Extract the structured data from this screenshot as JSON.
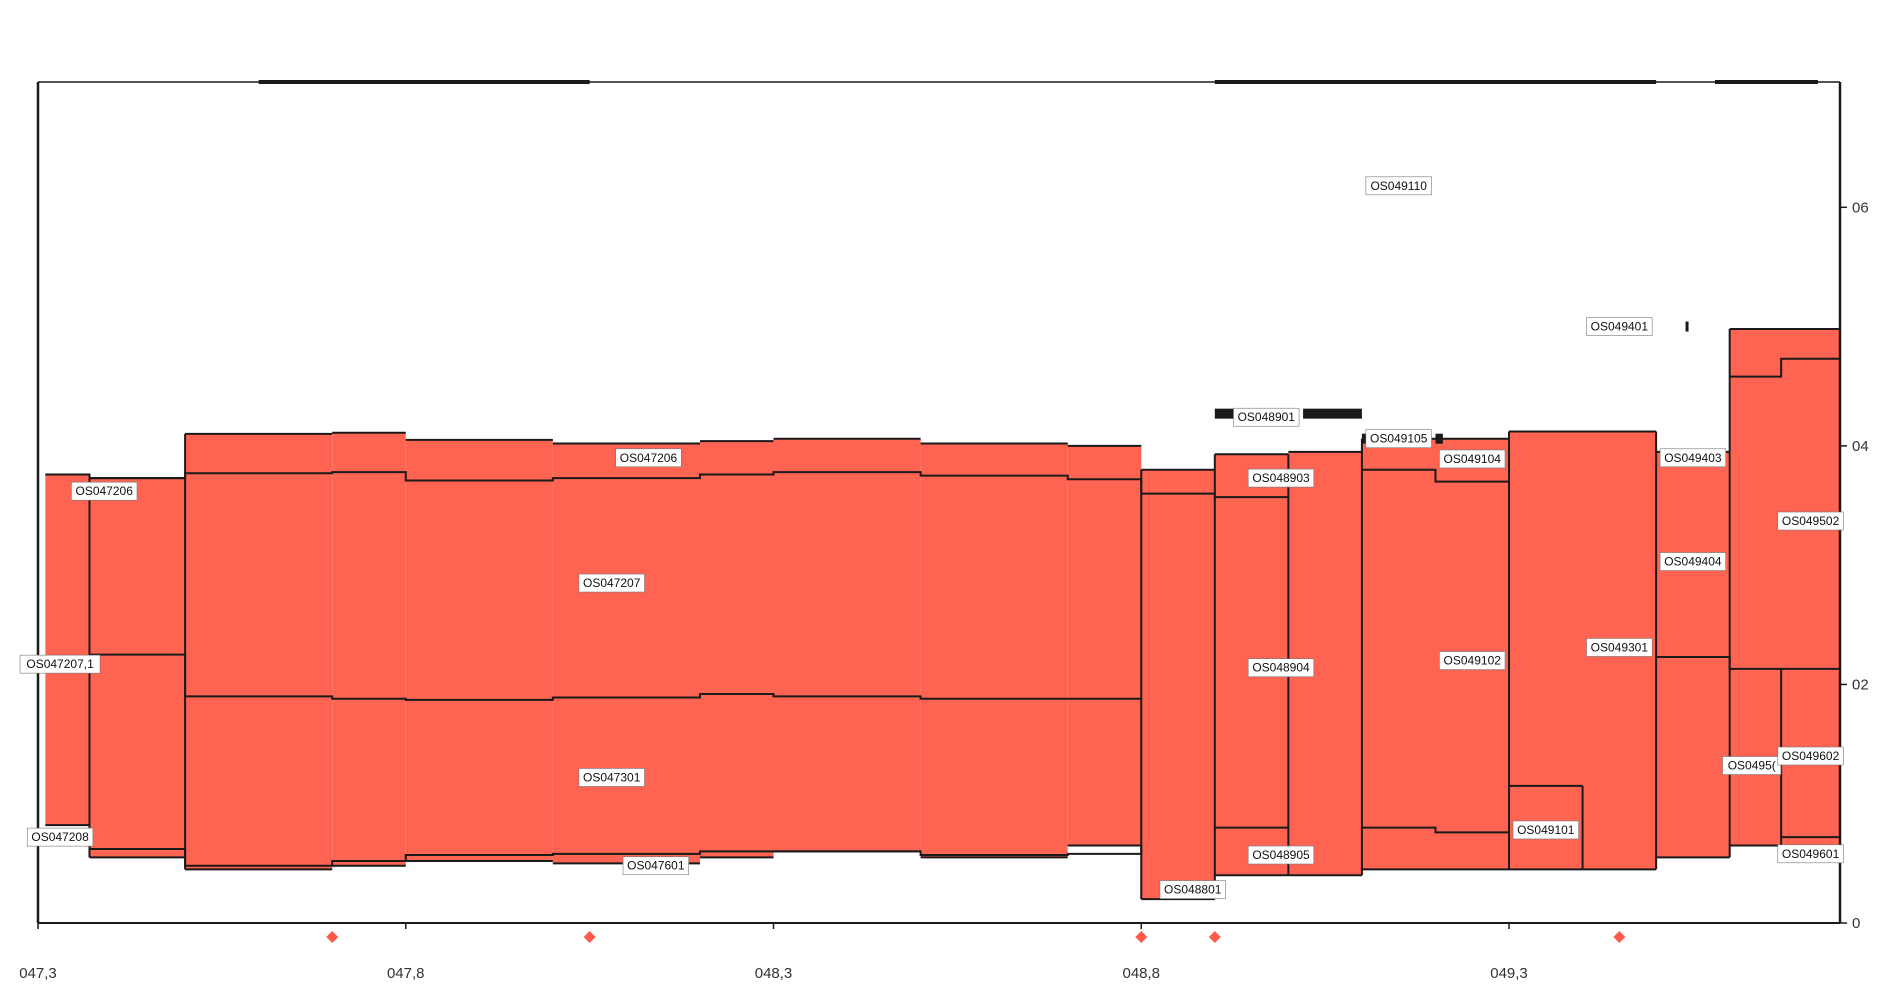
{
  "chart_data": {
    "type": "area",
    "title": "",
    "xlabel": "",
    "ylabel": "",
    "xlim": [
      47.3,
      49.75
    ],
    "ylim": [
      0,
      7
    ],
    "grid": false,
    "y_axis_side": "right",
    "colors": {
      "fill": "#ff6352",
      "line": "#1a1a1a",
      "marker": "#ff5a4a",
      "label_bg": "#ffffff"
    },
    "x_ticks": [
      {
        "value": 47.3,
        "label": "047,3"
      },
      {
        "value": 47.8,
        "label": "047,8"
      },
      {
        "value": 48.3,
        "label": "048,3"
      },
      {
        "value": 48.8,
        "label": "048,8"
      },
      {
        "value": 49.3,
        "label": "049,3"
      }
    ],
    "y_ticks": [
      {
        "value": 0,
        "label": "0"
      },
      {
        "value": 2,
        "label": "02"
      },
      {
        "value": 4,
        "label": "04"
      },
      {
        "value": 6,
        "label": "06"
      }
    ],
    "frame_top": 7.05,
    "frame_top_thick": [
      [
        47.6,
        48.05
      ],
      [
        48.9,
        49.5
      ],
      [
        49.58,
        49.72
      ]
    ],
    "segments": [
      {
        "x0": 47.31,
        "x1": 47.37,
        "y0": 0.82,
        "y1": 3.76
      },
      {
        "x0": 47.37,
        "x1": 47.5,
        "y0": 0.55,
        "y1": 3.73
      },
      {
        "x0": 47.5,
        "x1": 47.7,
        "y0": 0.45,
        "y1": 4.1
      },
      {
        "x0": 47.7,
        "x1": 47.8,
        "y0": 0.48,
        "y1": 4.11
      },
      {
        "x0": 47.8,
        "x1": 48.0,
        "y0": 0.52,
        "y1": 4.05
      },
      {
        "x0": 48.0,
        "x1": 48.2,
        "y0": 0.5,
        "y1": 4.02
      },
      {
        "x0": 48.2,
        "x1": 48.3,
        "y0": 0.55,
        "y1": 4.04
      },
      {
        "x0": 48.3,
        "x1": 48.5,
        "y0": 0.6,
        "y1": 4.06
      },
      {
        "x0": 48.5,
        "x1": 48.7,
        "y0": 0.55,
        "y1": 4.02
      },
      {
        "x0": 48.7,
        "x1": 48.8,
        "y0": 0.65,
        "y1": 4.0
      },
      {
        "x0": 48.8,
        "x1": 48.9,
        "y0": 0.2,
        "y1": 3.8
      },
      {
        "x0": 48.9,
        "x1": 49.0,
        "y0": 0.4,
        "y1": 3.93
      },
      {
        "x0": 49.0,
        "x1": 49.1,
        "y0": 0.4,
        "y1": 3.95
      },
      {
        "x0": 49.1,
        "x1": 49.3,
        "y0": 0.45,
        "y1": 4.06
      },
      {
        "x0": 49.3,
        "x1": 49.5,
        "y0": 0.45,
        "y1": 4.12
      },
      {
        "x0": 49.5,
        "x1": 49.6,
        "y0": 0.55,
        "y1": 3.95
      },
      {
        "x0": 49.6,
        "x1": 49.75,
        "y0": 0.65,
        "y1": 4.98
      }
    ],
    "steps": [
      {
        "name": "OS047206 (lower boundary)",
        "points": [
          [
            47.31,
            3.76
          ],
          [
            47.37,
            3.73
          ],
          [
            47.5,
            3.77
          ],
          [
            47.7,
            3.78
          ],
          [
            47.8,
            3.71
          ],
          [
            48.0,
            3.73
          ],
          [
            48.2,
            3.76
          ],
          [
            48.3,
            3.78
          ],
          [
            48.5,
            3.75
          ],
          [
            48.7,
            3.72
          ],
          [
            48.8,
            3.6
          ],
          [
            48.9,
            3.55
          ]
        ]
      },
      {
        "name": "OS047301 (upper boundary)",
        "points": [
          [
            47.37,
            2.25
          ],
          [
            47.5,
            1.9
          ],
          [
            47.7,
            1.88
          ],
          [
            47.8,
            1.87
          ],
          [
            48.0,
            1.89
          ],
          [
            48.2,
            1.92
          ],
          [
            48.3,
            1.9
          ],
          [
            48.5,
            1.88
          ],
          [
            48.7,
            1.88
          ],
          [
            48.8,
            1.88
          ]
        ]
      },
      {
        "name": "OS047601 (upper boundary)",
        "points": [
          [
            47.37,
            0.62
          ],
          [
            47.5,
            0.48
          ],
          [
            47.7,
            0.52
          ],
          [
            47.8,
            0.57
          ],
          [
            48.0,
            0.58
          ],
          [
            48.2,
            0.6
          ],
          [
            48.3,
            0.6
          ],
          [
            48.5,
            0.57
          ],
          [
            48.7,
            0.58
          ],
          [
            48.8,
            0.65
          ]
        ]
      },
      {
        "name": "OS048904 (upper boundary)",
        "points": [
          [
            48.9,
            3.57
          ],
          [
            49.0,
            3.57
          ]
        ]
      },
      {
        "name": "OS048905 (upper boundary)",
        "points": [
          [
            48.9,
            0.8
          ],
          [
            49.0,
            0.8
          ]
        ]
      },
      {
        "name": "OS049102 (upper boundary)",
        "points": [
          [
            49.1,
            3.8
          ],
          [
            49.2,
            3.7
          ],
          [
            49.3,
            3.7
          ]
        ]
      },
      {
        "name": "OS049102 (lower boundary)",
        "points": [
          [
            49.1,
            0.8
          ],
          [
            49.2,
            0.76
          ],
          [
            49.3,
            0.76
          ]
        ]
      },
      {
        "name": "OS049101 (upper boundary)",
        "points": [
          [
            49.3,
            1.15
          ],
          [
            49.4,
            1.15
          ]
        ]
      },
      {
        "name": "OS049404 (lower boundary)",
        "points": [
          [
            49.5,
            2.23
          ],
          [
            49.6,
            2.13
          ],
          [
            49.75,
            2.13
          ]
        ]
      },
      {
        "name": "OS049502 (lower boundary)",
        "points": [
          [
            49.6,
            4.58
          ],
          [
            49.67,
            4.73
          ],
          [
            49.75,
            4.73
          ]
        ]
      },
      {
        "name": "OS049601 (upper boundary)",
        "points": [
          [
            49.67,
            0.72
          ],
          [
            49.75,
            0.72
          ]
        ]
      }
    ],
    "dividers": [
      {
        "x": 47.37,
        "y0": 0.55,
        "y1": 3.73
      },
      {
        "x": 47.5,
        "y0": 0.45,
        "y1": 4.1
      },
      {
        "x": 48.8,
        "y0": 0.2,
        "y1": 3.8
      },
      {
        "x": 48.9,
        "y0": 0.2,
        "y1": 3.93
      },
      {
        "x": 49.0,
        "y0": 0.4,
        "y1": 3.93
      },
      {
        "x": 49.1,
        "y0": 0.4,
        "y1": 4.06
      },
      {
        "x": 49.3,
        "y0": 0.45,
        "y1": 4.12
      },
      {
        "x": 49.4,
        "y0": 0.45,
        "y1": 1.15
      },
      {
        "x": 49.5,
        "y0": 0.45,
        "y1": 4.12
      },
      {
        "x": 49.6,
        "y0": 0.55,
        "y1": 4.98
      },
      {
        "x": 49.67,
        "y0": 0.65,
        "y1": 2.13
      }
    ],
    "overlay_bars": [
      {
        "x0": 48.9,
        "x1": 48.93,
        "y": 4.27
      },
      {
        "x0": 49.02,
        "x1": 49.1,
        "y": 4.27
      },
      {
        "x0": 49.1,
        "x1": 49.11,
        "y": 4.06
      },
      {
        "x0": 49.2,
        "x1": 49.21,
        "y": 4.06
      },
      {
        "x0": 49.45,
        "x1": 49.45,
        "y": 5.0
      },
      {
        "x0": 49.54,
        "x1": 49.54,
        "y": 5.0
      }
    ],
    "labels": [
      {
        "text": "OS047206",
        "x": 47.39,
        "y": 3.62
      },
      {
        "text": "OS047206",
        "x": 48.13,
        "y": 3.9
      },
      {
        "text": "OS047207",
        "x": 48.08,
        "y": 2.85
      },
      {
        "text": "OS047207,1",
        "x": 47.33,
        "y": 2.17
      },
      {
        "text": "OS047301",
        "x": 48.08,
        "y": 1.22
      },
      {
        "text": "OS047208",
        "x": 47.33,
        "y": 0.72
      },
      {
        "text": "OS047601",
        "x": 48.14,
        "y": 0.48
      },
      {
        "text": "OS048801",
        "x": 48.87,
        "y": 0.28
      },
      {
        "text": "OS048901",
        "x": 48.97,
        "y": 4.24
      },
      {
        "text": "OS048903",
        "x": 48.99,
        "y": 3.73
      },
      {
        "text": "OS048904",
        "x": 48.99,
        "y": 2.14
      },
      {
        "text": "OS048905",
        "x": 48.99,
        "y": 0.57
      },
      {
        "text": "OS049110",
        "x": 49.15,
        "y": 6.18
      },
      {
        "text": "OS049105",
        "x": 49.15,
        "y": 4.06
      },
      {
        "text": "OS049104",
        "x": 49.25,
        "y": 3.89
      },
      {
        "text": "OS049102",
        "x": 49.25,
        "y": 2.2
      },
      {
        "text": "OS049101",
        "x": 49.35,
        "y": 0.78
      },
      {
        "text": "OS049301",
        "x": 49.45,
        "y": 2.31
      },
      {
        "text": "OS049401",
        "x": 49.45,
        "y": 5.0
      },
      {
        "text": "OS049403",
        "x": 49.55,
        "y": 3.9
      },
      {
        "text": "OS049404",
        "x": 49.55,
        "y": 3.03
      },
      {
        "text": "OS049502",
        "x": 49.71,
        "y": 3.37
      },
      {
        "text": "OS0495(",
        "x": 49.63,
        "y": 1.32
      },
      {
        "text": "OS049602",
        "x": 49.71,
        "y": 1.4
      },
      {
        "text": "OS049601",
        "x": 49.71,
        "y": 0.58
      }
    ],
    "markers": [
      47.7,
      48.05,
      48.8,
      48.9,
      49.45
    ]
  }
}
